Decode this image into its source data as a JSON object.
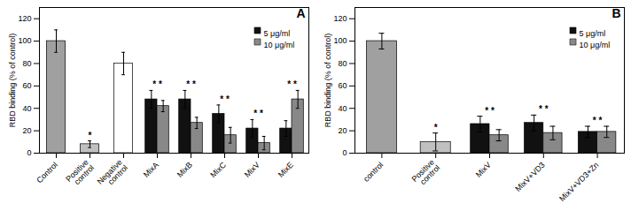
{
  "chart_data": [
    {
      "type": "bar",
      "title": "A",
      "categories": [
        "Control",
        "Positive\ncontrol",
        "Negative\ncontrol",
        "MixA",
        "MixB",
        "MixC",
        "MixV",
        "MixE"
      ],
      "ylabel": "RBD binding (% of control)",
      "ylim": [
        0,
        130
      ],
      "yticks": [
        0,
        20,
        40,
        60,
        80,
        100,
        120
      ],
      "legend": "upper right",
      "series": [
        {
          "name": "5 μg/ml",
          "color": "#111111",
          "colors": [
            "#a0a0a0",
            null,
            "#ffffff",
            "#111111",
            "#111111",
            "#111111",
            "#111111",
            "#111111"
          ],
          "values": [
            100,
            null,
            80,
            48,
            48,
            35,
            22,
            22
          ],
          "errors": [
            10,
            null,
            10,
            8,
            8,
            8,
            8,
            7
          ]
        },
        {
          "name": "10 μg/ml",
          "color": "#888888",
          "colors": [
            null,
            "#c0c0c0",
            null,
            "#888888",
            "#888888",
            "#888888",
            "#888888",
            "#888888"
          ],
          "values": [
            null,
            8,
            null,
            42,
            27,
            16,
            9,
            48
          ],
          "errors": [
            null,
            3,
            null,
            5,
            5,
            7,
            6,
            8
          ]
        }
      ],
      "annotations": [
        {
          "category": "Positive\ncontrol",
          "text": "*"
        },
        {
          "category": "MixA",
          "text": "* *"
        },
        {
          "category": "MixB",
          "text": "* *"
        },
        {
          "category": "MixC",
          "text": "* *"
        },
        {
          "category": "MixV",
          "text": "* *"
        },
        {
          "category": "MixE",
          "text": "* *"
        }
      ]
    },
    {
      "type": "bar",
      "title": "B",
      "categories": [
        "control",
        "Positive\ncontrol",
        "MixV",
        "MixV+VD3",
        "MixV+VD3+Zn"
      ],
      "ylabel": "RBD binding (% of control)",
      "ylim": [
        0,
        130
      ],
      "yticks": [
        0,
        20,
        40,
        60,
        80,
        100,
        120
      ],
      "legend": "upper right",
      "series": [
        {
          "name": "5 μg/ml",
          "color": "#111111",
          "colors": [
            "#a0a0a0",
            null,
            "#111111",
            "#111111",
            "#111111"
          ],
          "values": [
            100,
            null,
            26,
            27,
            19
          ],
          "errors": [
            7,
            null,
            7,
            7,
            5
          ]
        },
        {
          "name": "10 μg/ml",
          "color": "#888888",
          "colors": [
            null,
            "#c0c0c0",
            "#888888",
            "#888888",
            "#888888"
          ],
          "values": [
            null,
            10,
            16,
            18,
            19
          ],
          "errors": [
            null,
            8,
            5,
            6,
            5
          ]
        }
      ],
      "annotations": [
        {
          "category": "Positive\ncontrol",
          "text": "*"
        },
        {
          "category": "MixV",
          "text": "* *"
        },
        {
          "category": "MixV+VD3",
          "text": "* *"
        },
        {
          "category": "MixV+VD3+Zn",
          "text": "* *"
        }
      ]
    }
  ]
}
